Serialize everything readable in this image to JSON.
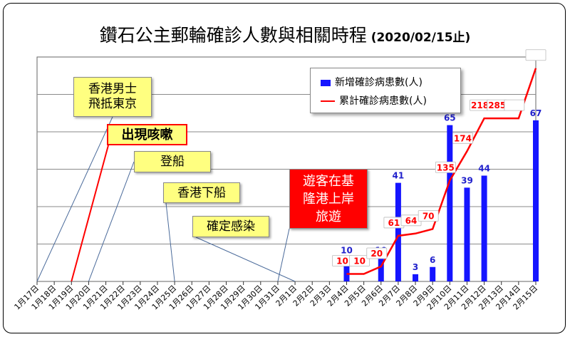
{
  "chart_data": {
    "type": "bar+line",
    "title": "鑽石公主郵輪確診人數與相關時程",
    "subtitle": "(2020/02/15止)",
    "categories": [
      "1月17日",
      "1月18日",
      "1月19日",
      "1月20日",
      "1月21日",
      "1月22日",
      "1月23日",
      "1月24日",
      "1月25日",
      "1月26日",
      "1月27日",
      "1月28日",
      "1月29日",
      "1月30日",
      "1月31日",
      "2月1日",
      "2月2日",
      "2月3日",
      "2月4日",
      "2月5日",
      "2月6日",
      "2月7日",
      "2月8日",
      "2月9日",
      "2月10日",
      "2月11日",
      "2月12日",
      "2月13日",
      "2月14日",
      "2月15日"
    ],
    "series": [
      {
        "name": "新增確診病患數(人)",
        "kind": "bar",
        "color": "#1515ff",
        "values": [
          null,
          null,
          null,
          null,
          null,
          null,
          null,
          null,
          null,
          null,
          null,
          null,
          null,
          null,
          null,
          null,
          null,
          null,
          10,
          null,
          10,
          41,
          3,
          6,
          65,
          39,
          44,
          null,
          null,
          67
        ]
      },
      {
        "name": "累計確診病患數(人)",
        "kind": "line",
        "color": "#ff0000",
        "values": [
          null,
          null,
          null,
          null,
          null,
          null,
          null,
          null,
          null,
          null,
          null,
          null,
          null,
          null,
          null,
          null,
          null,
          null,
          10,
          10,
          20,
          61,
          64,
          70,
          135,
          174,
          218,
          218,
          218,
          285
        ]
      }
    ],
    "bar_labels": [
      "10",
      "10",
      "41",
      "3",
      "6",
      "65",
      "39",
      "44",
      "67"
    ],
    "line_labels": [
      "10",
      "10",
      "20",
      "61",
      "64",
      "70",
      "135",
      "174",
      "218",
      "285"
    ],
    "ylim": [
      0,
      300
    ],
    "bar_ylim": [
      0,
      70
    ],
    "grid": true,
    "legend": "top-right",
    "annotations": [
      {
        "id": "hk-man",
        "text_lines": [
          "香港男士",
          "飛抵東京"
        ],
        "date": "1月17日"
      },
      {
        "id": "cough",
        "text_lines": [
          "出現咳嗽"
        ],
        "date": "1月19日"
      },
      {
        "id": "board",
        "text_lines": [
          "登船"
        ],
        "date": "1月20日"
      },
      {
        "id": "hk-off",
        "text_lines": [
          "香港下船"
        ],
        "date": "1月25日"
      },
      {
        "id": "confirmed",
        "text_lines": [
          "確定感染"
        ],
        "date": "2月1日"
      },
      {
        "id": "keelung",
        "text_lines": [
          "遊客在基",
          "隆港上岸",
          "旅遊"
        ],
        "date": "1月31日"
      }
    ]
  }
}
